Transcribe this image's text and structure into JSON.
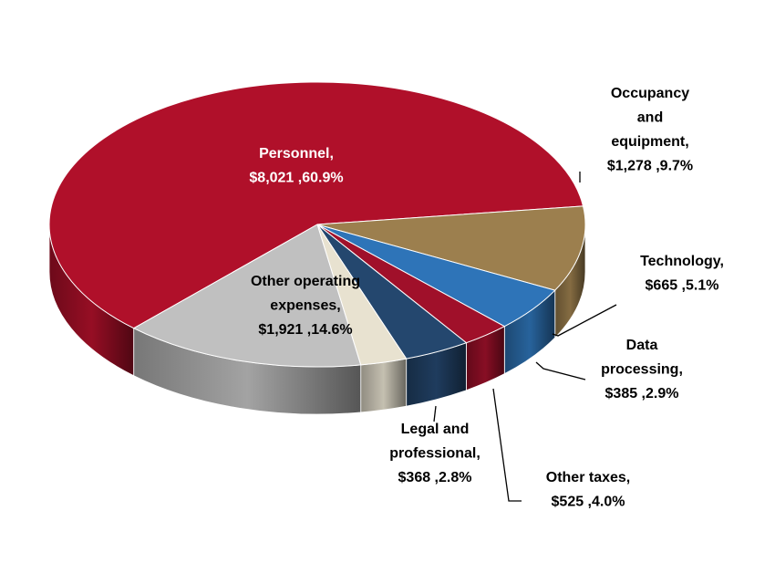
{
  "chart_data": {
    "type": "pie",
    "style": "3d",
    "slices": [
      {
        "name": "Personnel",
        "value": 8021,
        "value_label": "$8,021",
        "percent": 60.9,
        "percent_label": "60.9%",
        "color": "#b0102a",
        "label_lines": [
          "Personnel,",
          "$8,021 ,60.9%"
        ]
      },
      {
        "name": "Occupancy and equipment",
        "value": 1278,
        "value_label": "$1,278",
        "percent": 9.7,
        "percent_label": "9.7%",
        "color": "#9c7f4e",
        "label_lines": [
          "Occupancy",
          "and",
          "equipment,",
          "$1,278 ,9.7%"
        ]
      },
      {
        "name": "Technology",
        "value": 665,
        "value_label": "$665",
        "percent": 5.1,
        "percent_label": "5.1%",
        "color": "#2e74b8",
        "label_lines": [
          "Technology,",
          "$665 ,5.1%"
        ]
      },
      {
        "name": "Data processing",
        "value": 385,
        "value_label": "$385",
        "percent": 2.9,
        "percent_label": "2.9%",
        "color": "#a0102a",
        "label_lines": [
          "Data",
          "processing,",
          "$385 ,2.9%"
        ]
      },
      {
        "name": "Other taxes",
        "value": 525,
        "value_label": "$525",
        "percent": 4.0,
        "percent_label": "4.0%",
        "color": "#24476e",
        "label_lines": [
          "Other taxes,",
          "$525 ,4.0%"
        ]
      },
      {
        "name": "Legal and professional",
        "value": 368,
        "value_label": "$368",
        "percent": 2.8,
        "percent_label": "2.8%",
        "color": "#e8e2d0",
        "label_lines": [
          "Legal and",
          "professional,",
          "$368 ,2.8%"
        ]
      },
      {
        "name": "Other operating expenses",
        "value": 1921,
        "value_label": "$1,921",
        "percent": 14.6,
        "percent_label": "14.6%",
        "color": "#c0c0c0",
        "label_lines": [
          "Other operating",
          "expenses,",
          "$1,921 ,14.6%"
        ]
      }
    ]
  }
}
